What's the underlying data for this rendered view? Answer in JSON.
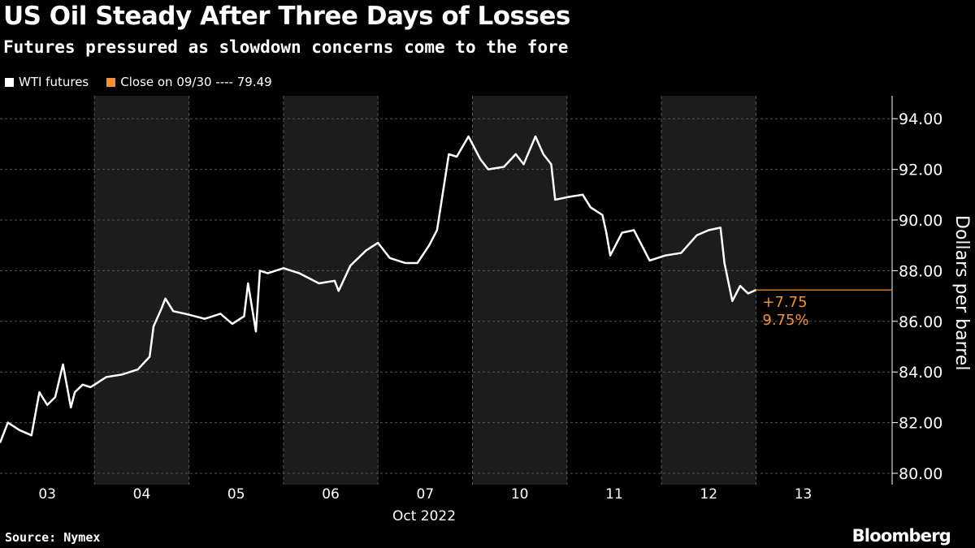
{
  "title": "US Oil Steady After Three Days of Losses",
  "subtitle": "Futures pressured as slowdown concerns come to the fore",
  "legend": {
    "series": "WTI futures",
    "reference": "Close on 09/30 ---- 79.49"
  },
  "source": "Source: Nymex",
  "brand": "Bloomberg",
  "colors": {
    "series": "#ffffff",
    "reference": "#f5912c",
    "shade": "#1c1c1c",
    "background": "#000000"
  },
  "chart_data": {
    "type": "line",
    "xlabel": "Oct 2022",
    "ylabel": "Dollars per barrel",
    "ylim": [
      80,
      94
    ],
    "yticks": [
      "80.00",
      "82.00",
      "84.00",
      "86.00",
      "88.00",
      "90.00",
      "92.00",
      "94.00"
    ],
    "xticks": [
      "03",
      "04",
      "05",
      "06",
      "07",
      "10",
      "11",
      "12",
      "13"
    ],
    "shaded_days": [
      "04",
      "06",
      "10",
      "12"
    ],
    "grid": true,
    "reference": {
      "label": "Close on 09/30",
      "value": 79.49
    },
    "annotation": {
      "change": "+7.75",
      "pct": "9.75%",
      "last": 87.24
    },
    "series": [
      {
        "name": "WTI futures",
        "points": [
          [
            "03",
            0,
            81.2
          ],
          [
            "03",
            2,
            82.0
          ],
          [
            "03",
            5,
            81.7
          ],
          [
            "03",
            8,
            81.5
          ],
          [
            "03",
            10,
            83.2
          ],
          [
            "03",
            12,
            82.7
          ],
          [
            "03",
            14,
            83.0
          ],
          [
            "03",
            16,
            84.3
          ],
          [
            "03",
            18,
            82.6
          ],
          [
            "03",
            19,
            83.2
          ],
          [
            "03",
            21,
            83.5
          ],
          [
            "03",
            23,
            83.4
          ],
          [
            "04",
            3,
            83.8
          ],
          [
            "04",
            7,
            83.9
          ],
          [
            "04",
            11,
            84.1
          ],
          [
            "04",
            14,
            84.6
          ],
          [
            "04",
            15,
            85.8
          ],
          [
            "04",
            17,
            86.5
          ],
          [
            "04",
            18,
            86.9
          ],
          [
            "04",
            20,
            86.4
          ],
          [
            "04",
            23,
            86.3
          ],
          [
            "05",
            4,
            86.1
          ],
          [
            "05",
            8,
            86.3
          ],
          [
            "05",
            11,
            85.9
          ],
          [
            "05",
            14,
            86.2
          ],
          [
            "05",
            15,
            87.5
          ],
          [
            "05",
            17,
            85.6
          ],
          [
            "05",
            18,
            88.0
          ],
          [
            "05",
            20,
            87.9
          ],
          [
            "06",
            0,
            88.1
          ],
          [
            "06",
            4,
            87.9
          ],
          [
            "06",
            9,
            87.5
          ],
          [
            "06",
            13,
            87.6
          ],
          [
            "06",
            14,
            87.2
          ],
          [
            "06",
            17,
            88.2
          ],
          [
            "06",
            21,
            88.8
          ],
          [
            "07",
            0,
            89.1
          ],
          [
            "07",
            3,
            88.5
          ],
          [
            "07",
            7,
            88.3
          ],
          [
            "07",
            10,
            88.3
          ],
          [
            "07",
            13,
            89.0
          ],
          [
            "07",
            15,
            89.6
          ],
          [
            "07",
            16,
            90.6
          ],
          [
            "07",
            18,
            92.6
          ],
          [
            "07",
            20,
            92.5
          ],
          [
            "07",
            23,
            93.3
          ],
          [
            "10",
            2,
            92.4
          ],
          [
            "10",
            4,
            92.0
          ],
          [
            "10",
            8,
            92.1
          ],
          [
            "10",
            11,
            92.6
          ],
          [
            "10",
            13,
            92.2
          ],
          [
            "10",
            16,
            93.3
          ],
          [
            "10",
            18,
            92.6
          ],
          [
            "10",
            20,
            92.2
          ],
          [
            "10",
            21,
            90.8
          ],
          [
            "11",
            0,
            90.9
          ],
          [
            "11",
            4,
            91.0
          ],
          [
            "11",
            6,
            90.5
          ],
          [
            "11",
            9,
            90.2
          ],
          [
            "11",
            10,
            89.5
          ],
          [
            "11",
            11,
            88.6
          ],
          [
            "11",
            14,
            89.5
          ],
          [
            "11",
            17,
            89.6
          ],
          [
            "11",
            21,
            88.4
          ],
          [
            "12",
            1,
            88.6
          ],
          [
            "12",
            5,
            88.7
          ],
          [
            "12",
            9,
            89.4
          ],
          [
            "12",
            12,
            89.6
          ],
          [
            "12",
            15,
            89.7
          ],
          [
            "12",
            16,
            88.3
          ],
          [
            "12",
            18,
            86.8
          ],
          [
            "12",
            20,
            87.4
          ],
          [
            "12",
            22,
            87.1
          ],
          [
            "13",
            0,
            87.24
          ]
        ]
      }
    ]
  }
}
